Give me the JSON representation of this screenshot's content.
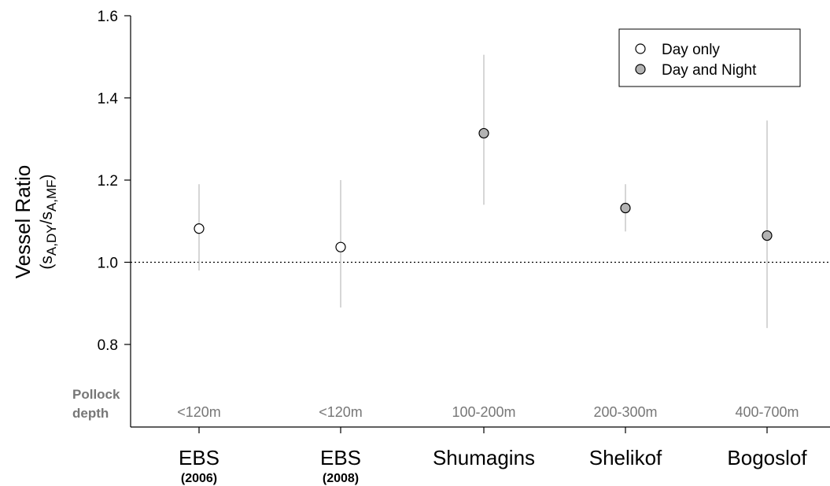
{
  "chart_data": {
    "type": "scatter",
    "title": "",
    "xlabel": "",
    "ylabel": "Vessel Ratio",
    "ylabel_sub": {
      "open": "(s",
      "sub1": "A,DY",
      "slash": "/s",
      "sub2": "A,MF",
      "close": ")"
    },
    "ylim": [
      0.6,
      1.6
    ],
    "yticks": [
      "0.8",
      "1.0",
      "1.2",
      "1.4",
      "1.6"
    ],
    "reference_line": 1.0,
    "depth_row_label": [
      "Pollock",
      "depth"
    ],
    "legend": {
      "position": "top-right",
      "entries": [
        {
          "label": "Day only",
          "fill": "#ffffff"
        },
        {
          "label": "Day and Night",
          "fill": "#b3b3b3"
        }
      ]
    },
    "categories": [
      {
        "label": "EBS",
        "sublabel": "(2006)",
        "depth": "<120m",
        "y": 1.082,
        "low": 0.98,
        "high": 1.19,
        "group": "Day only"
      },
      {
        "label": "EBS",
        "sublabel": "(2008)",
        "depth": "<120m",
        "y": 1.037,
        "low": 0.89,
        "high": 1.2,
        "group": "Day only"
      },
      {
        "label": "Shumagins",
        "sublabel": "",
        "depth": "100-200m",
        "y": 1.314,
        "low": 1.14,
        "high": 1.505,
        "group": "Day and Night"
      },
      {
        "label": "Shelikof",
        "sublabel": "",
        "depth": "200-300m",
        "y": 1.132,
        "low": 1.075,
        "high": 1.19,
        "group": "Day and Night"
      },
      {
        "label": "Bogoslof",
        "sublabel": "",
        "depth": "400-700m",
        "y": 1.065,
        "low": 0.84,
        "high": 1.345,
        "group": "Day and Night"
      }
    ]
  }
}
